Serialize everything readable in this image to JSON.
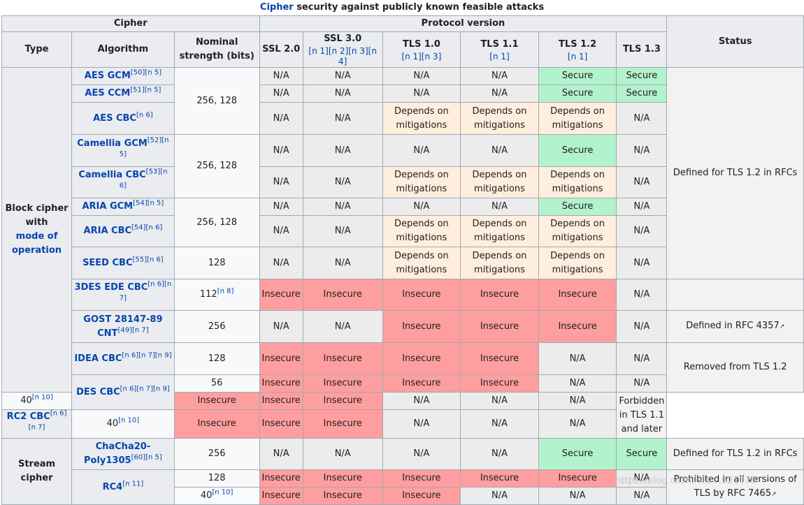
{
  "caption": {
    "link": "Cipher",
    "rest": " security against publicly known feasible attacks"
  },
  "headers": {
    "cipher": "Cipher",
    "protocol_version": "Protocol version",
    "type": "Type",
    "algorithm": "Algorithm",
    "strength": "Nominal strength (bits)",
    "ssl2": "SSL 2.0",
    "ssl3": "SSL 3.0",
    "ssl3_refs": "[n 1][n 2][n 3][n 4]",
    "tls10": "TLS 1.0",
    "tls10_refs": "[n 1][n 3]",
    "tls11": "TLS 1.1",
    "tls11_refs": "[n 1]",
    "tls12": "TLS 1.2",
    "tls12_refs": "[n 1]",
    "tls13": "TLS 1.3",
    "status": "Status"
  },
  "types": {
    "block_a": "Block cipher",
    "block_b": "with",
    "block_link": "mode of operation",
    "stream": "Stream cipher"
  },
  "algorithms": {
    "aes_gcm": "AES GCM",
    "aes_gcm_ref": "[50][n 5]",
    "aes_ccm": "AES CCM",
    "aes_ccm_ref": "[51][n 5]",
    "aes_cbc": "AES CBC",
    "aes_cbc_ref": "[n 6]",
    "cam_gcm": "Camellia GCM",
    "cam_gcm_ref": "[52][n 5]",
    "cam_cbc": "Camellia CBC",
    "cam_cbc_ref": "[53][n 6]",
    "aria_gcm": "ARIA GCM",
    "aria_gcm_ref": "[54][n 5]",
    "aria_cbc": "ARIA CBC",
    "aria_cbc_ref": "[54][n 6]",
    "seed_cbc": "SEED CBC",
    "seed_cbc_ref": "[55][n 6]",
    "tdes": "3DES EDE CBC",
    "tdes_ref": "[n 6][n 7]",
    "gost": "GOST 28147-89 CNT",
    "gost_ref": "[49][n 7]",
    "idea": "IDEA CBC",
    "idea_ref": "[n 6][n 7][n 9]",
    "des": "DES CBC",
    "des_ref": "[n 6][n 7][n 9]",
    "rc2": "RC2 CBC",
    "rc2_ref": "[n 6][n 7]",
    "chacha": "ChaCha20-Poly1305",
    "chacha_ref": "[60][n 5]",
    "rc4": "RC4",
    "rc4_ref": "[n 11]"
  },
  "strengths": {
    "s256_128": "256, 128",
    "s128": "128",
    "s112": "112",
    "s112_ref": "[n 8]",
    "s256": "256",
    "s56": "56",
    "s40": "40",
    "s40_ref": "[n 10]"
  },
  "values": {
    "na": "N/A",
    "secure": "Secure",
    "dep_a": "Depends on",
    "dep_b": "mitigations",
    "insecure": "Insecure"
  },
  "statuses": {
    "rfc_tls12": "Defined for TLS 1.2 in RFCs",
    "rfc4357_text": "Defined in ",
    "rfc4357_link": "RFC 4357",
    "removed": "Removed from TLS 1.2",
    "forbidden": "Forbidden in TLS 1.1 and later",
    "prohibited_text": "Prohibited in all versions of TLS by ",
    "prohibited_link": "RFC 7465"
  },
  "colors": {
    "secure": "#b2f2cc",
    "depends": "#ffeedd",
    "insecure": "#ff9e9e",
    "na": "#ececec",
    "header": "#eaecf0",
    "link": "#0645ad"
  },
  "watermark": "https://blog.csdn.net/…521078"
}
